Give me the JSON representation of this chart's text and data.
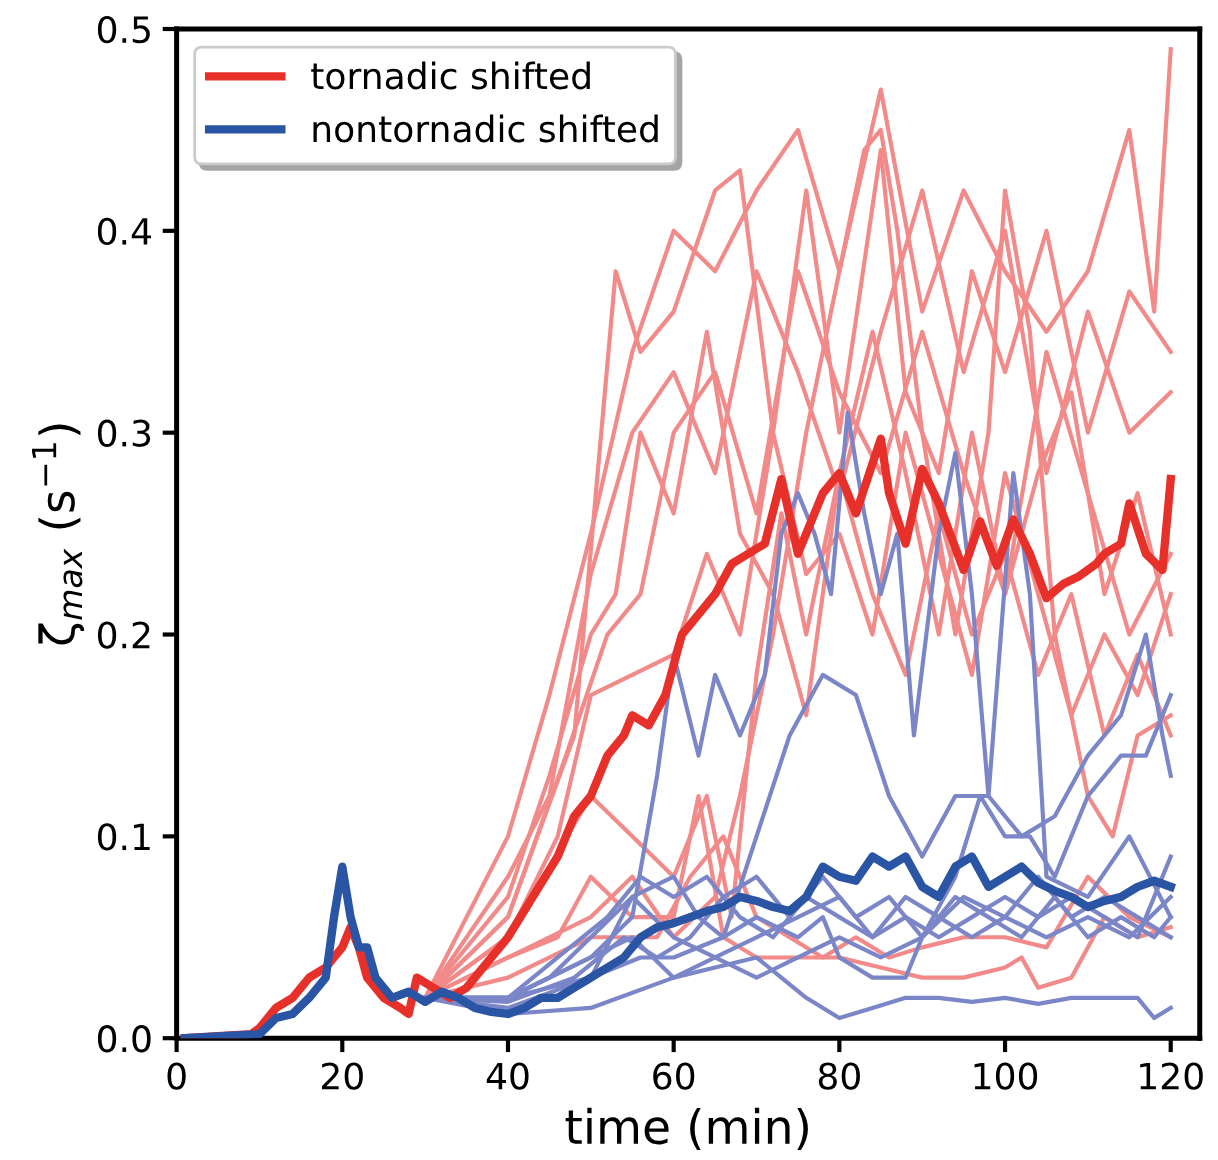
{
  "chart_data": {
    "type": "line",
    "xlabel": "time (min)",
    "ylabel": "ζ$_{max}$ (s$^{−1}$)",
    "xlim": [
      0,
      123.5
    ],
    "ylim": [
      0,
      0.5
    ],
    "xticks": [
      0,
      20,
      40,
      60,
      80,
      100,
      120
    ],
    "yticks": [
      {
        "value": 0,
        "label": "0.0"
      },
      0.1,
      0.2,
      0.3,
      0.4,
      0.5
    ],
    "grid": false,
    "legend": "top left",
    "marker": "none",
    "line_style": "solid",
    "series": [
      {
        "color": "#f28a8a",
        "x": [
          30,
          40,
          45,
          50,
          55,
          60,
          65,
          70,
          75,
          80,
          85,
          90,
          95,
          100,
          105,
          110,
          115,
          118,
          120
        ],
        "values": [
          0.02,
          0.1,
          0.17,
          0.25,
          0.34,
          0.4,
          0.38,
          0.42,
          0.45,
          0.38,
          0.47,
          0.36,
          0.42,
          0.38,
          0.35,
          0.38,
          0.45,
          0.36,
          0.49
        ]
      },
      {
        "color": "#f28a8a",
        "x": [
          30,
          40,
          48,
          53,
          56,
          60,
          65,
          68,
          72,
          76,
          80,
          85,
          88,
          92,
          96,
          100,
          105,
          110,
          115,
          120
        ],
        "values": [
          0.02,
          0.06,
          0.15,
          0.38,
          0.34,
          0.36,
          0.42,
          0.43,
          0.3,
          0.42,
          0.3,
          0.44,
          0.32,
          0.28,
          0.38,
          0.33,
          0.4,
          0.3,
          0.37,
          0.34
        ]
      },
      {
        "color": "#f28a8a",
        "x": [
          30,
          40,
          45,
          50,
          55,
          60,
          65,
          70,
          75,
          80,
          85,
          90,
          95,
          100,
          105,
          110,
          115,
          120
        ],
        "values": [
          0.02,
          0.08,
          0.12,
          0.23,
          0.3,
          0.33,
          0.28,
          0.38,
          0.33,
          0.27,
          0.35,
          0.42,
          0.33,
          0.4,
          0.28,
          0.36,
          0.3,
          0.32
        ]
      },
      {
        "color": "#f28a8a",
        "x": [
          30,
          40,
          47,
          52,
          56,
          60,
          65,
          70,
          75,
          80,
          85,
          90,
          95,
          100,
          105,
          110,
          115,
          120
        ],
        "values": [
          0.02,
          0.06,
          0.14,
          0.2,
          0.22,
          0.3,
          0.33,
          0.26,
          0.38,
          0.32,
          0.28,
          0.35,
          0.28,
          0.22,
          0.34,
          0.27,
          0.2,
          0.24
        ]
      },
      {
        "color": "#f28a8a",
        "x": [
          30,
          40,
          46,
          50,
          55,
          60,
          64,
          68,
          72,
          76,
          80,
          84,
          88,
          92,
          96,
          100,
          104,
          108,
          112,
          116,
          120
        ],
        "values": [
          0.02,
          0.05,
          0.1,
          0.17,
          0.18,
          0.19,
          0.24,
          0.2,
          0.3,
          0.23,
          0.25,
          0.2,
          0.3,
          0.24,
          0.18,
          0.28,
          0.22,
          0.16,
          0.2,
          0.17,
          0.22
        ]
      },
      {
        "color": "#f28a8a",
        "x": [
          30,
          40,
          50,
          55,
          60,
          64,
          67,
          70,
          73,
          76,
          80,
          84,
          88,
          92,
          96,
          100,
          104,
          108,
          112,
          116,
          120
        ],
        "values": [
          0.02,
          0.05,
          0.12,
          0.1,
          0.08,
          0.12,
          0.06,
          0.18,
          0.26,
          0.2,
          0.28,
          0.22,
          0.18,
          0.26,
          0.2,
          0.24,
          0.18,
          0.22,
          0.15,
          0.19,
          0.15
        ]
      },
      {
        "color": "#f28a8a",
        "x": [
          30,
          40,
          46,
          50,
          55,
          60,
          63,
          66,
          70,
          75,
          80,
          85,
          90,
          95,
          100,
          102,
          104,
          108,
          112,
          116,
          120
        ],
        "values": [
          0.02,
          0.04,
          0.05,
          0.08,
          0.06,
          0.06,
          0.12,
          0.05,
          0.04,
          0.04,
          0.04,
          0.035,
          0.03,
          0.03,
          0.035,
          0.04,
          0.025,
          0.03,
          0.06,
          0.05,
          0.055
        ]
      },
      {
        "color": "#f28a8a",
        "x": [
          30,
          40,
          50,
          55,
          60,
          65,
          68,
          72,
          76,
          80,
          83,
          85,
          87,
          90,
          94,
          98,
          100,
          103,
          106,
          110,
          113,
          116,
          120
        ],
        "values": [
          0.02,
          0.04,
          0.06,
          0.08,
          0.05,
          0.07,
          0.12,
          0.2,
          0.3,
          0.38,
          0.44,
          0.45,
          0.4,
          0.3,
          0.2,
          0.3,
          0.42,
          0.35,
          0.2,
          0.12,
          0.1,
          0.15,
          0.16
        ]
      },
      {
        "color": "#f28a8a",
        "x": [
          30,
          40,
          50,
          58,
          62,
          66,
          70,
          74,
          78,
          82,
          86,
          90,
          95,
          100,
          105,
          110,
          115,
          120
        ],
        "values": [
          0.02,
          0.03,
          0.05,
          0.05,
          0.08,
          0.1,
          0.06,
          0.05,
          0.04,
          0.05,
          0.04,
          0.045,
          0.05,
          0.05,
          0.045,
          0.08,
          0.06,
          0.05
        ]
      },
      {
        "color": "#f28a8a",
        "x": [
          30,
          40,
          45,
          50,
          53,
          56,
          60,
          64,
          68,
          72,
          76,
          80,
          84,
          88,
          92,
          96,
          100,
          104,
          108,
          112,
          116,
          120
        ],
        "values": [
          0.02,
          0.07,
          0.13,
          0.2,
          0.22,
          0.3,
          0.26,
          0.35,
          0.25,
          0.22,
          0.16,
          0.28,
          0.35,
          0.28,
          0.2,
          0.3,
          0.22,
          0.28,
          0.32,
          0.22,
          0.27,
          0.2
        ]
      },
      {
        "color": "#7b86c8",
        "x": [
          30,
          40,
          50,
          55,
          58,
          60,
          63,
          65,
          68,
          71,
          73,
          75,
          77,
          79,
          81,
          83,
          85,
          87,
          89,
          92,
          94,
          96,
          98,
          101,
          103,
          105,
          110,
          115,
          120
        ],
        "values": [
          0.02,
          0.02,
          0.04,
          0.06,
          0.13,
          0.19,
          0.14,
          0.18,
          0.15,
          0.18,
          0.25,
          0.27,
          0.25,
          0.22,
          0.31,
          0.26,
          0.22,
          0.25,
          0.15,
          0.25,
          0.29,
          0.22,
          0.12,
          0.28,
          0.22,
          0.08,
          0.07,
          0.1,
          0.06
        ]
      },
      {
        "color": "#7b86c8",
        "x": [
          30,
          40,
          45,
          50,
          55,
          60,
          63,
          66,
          70,
          74,
          78,
          82,
          86,
          90,
          94,
          98,
          102,
          106,
          110,
          114,
          117,
          119,
          120
        ],
        "values": [
          0.02,
          0.02,
          0.03,
          0.05,
          0.07,
          0.08,
          0.06,
          0.05,
          0.1,
          0.15,
          0.18,
          0.17,
          0.12,
          0.09,
          0.12,
          0.12,
          0.1,
          0.11,
          0.14,
          0.16,
          0.2,
          0.15,
          0.13
        ]
      },
      {
        "color": "#7b86c8",
        "x": [
          30,
          40,
          50,
          56,
          60,
          66,
          70,
          75,
          78,
          80,
          84,
          88,
          90,
          94,
          97,
          100,
          103,
          106,
          110,
          114,
          117,
          120
        ],
        "values": [
          0.02,
          0.02,
          0.03,
          0.04,
          0.04,
          0.05,
          0.06,
          0.05,
          0.06,
          0.04,
          0.03,
          0.03,
          0.05,
          0.08,
          0.12,
          0.1,
          0.1,
          0.08,
          0.12,
          0.14,
          0.14,
          0.17
        ]
      },
      {
        "color": "#7b86c8",
        "x": [
          30,
          40,
          50,
          55,
          60,
          65,
          70,
          75,
          80,
          84,
          88,
          92,
          96,
          100,
          104,
          108,
          112,
          116,
          120
        ],
        "values": [
          0.02,
          0.015,
          0.03,
          0.07,
          0.05,
          0.04,
          0.05,
          0.06,
          0.07,
          0.05,
          0.06,
          0.05,
          0.06,
          0.07,
          0.06,
          0.07,
          0.06,
          0.05,
          0.09
        ]
      },
      {
        "color": "#7b86c8",
        "x": [
          30,
          40,
          50,
          60,
          65,
          70,
          73,
          76,
          80,
          84,
          88,
          92,
          96,
          100,
          104,
          108,
          112,
          116,
          118,
          120
        ],
        "values": [
          0.02,
          0.012,
          0.015,
          0.03,
          0.035,
          0.04,
          0.03,
          0.02,
          0.01,
          0.015,
          0.02,
          0.02,
          0.018,
          0.02,
          0.017,
          0.02,
          0.02,
          0.02,
          0.01,
          0.015
        ]
      },
      {
        "color": "#7b86c8",
        "x": [
          30,
          40,
          46,
          52,
          56,
          60,
          64,
          68,
          72,
          76,
          80,
          84,
          88,
          92,
          96,
          100,
          104,
          108,
          112,
          116,
          120
        ],
        "values": [
          0.02,
          0.02,
          0.04,
          0.06,
          0.08,
          0.07,
          0.08,
          0.06,
          0.05,
          0.07,
          0.06,
          0.05,
          0.07,
          0.06,
          0.05,
          0.06,
          0.08,
          0.06,
          0.07,
          0.06,
          0.05
        ]
      },
      {
        "color": "#7b86c8",
        "x": [
          30,
          40,
          48,
          54,
          58,
          62,
          66,
          70,
          74,
          78,
          82,
          86,
          90,
          94,
          98,
          102,
          106,
          110,
          114,
          118,
          120
        ],
        "values": [
          0.02,
          0.018,
          0.03,
          0.05,
          0.04,
          0.05,
          0.07,
          0.08,
          0.06,
          0.08,
          0.06,
          0.07,
          0.05,
          0.07,
          0.06,
          0.05,
          0.07,
          0.05,
          0.06,
          0.05,
          0.06
        ]
      },
      {
        "color": "#7b86c8",
        "x": [
          30,
          40,
          50,
          55,
          60,
          65,
          70,
          75,
          80,
          85,
          90,
          95,
          100,
          105,
          110,
          115,
          120
        ],
        "values": [
          0.02,
          0.02,
          0.04,
          0.05,
          0.03,
          0.04,
          0.03,
          0.04,
          0.05,
          0.04,
          0.05,
          0.07,
          0.06,
          0.05,
          0.06,
          0.05,
          0.07
        ]
      },
      {
        "name": "tornadic shifted",
        "color": "#e8302a",
        "x": [
          1,
          9,
          10,
          12,
          14,
          16,
          18,
          19,
          20,
          21,
          22,
          23,
          25,
          27,
          28,
          29,
          31,
          33,
          35,
          38,
          40,
          43,
          46,
          48,
          50,
          52,
          54,
          55,
          57,
          59,
          61,
          63,
          65,
          67,
          69,
          71,
          73,
          75,
          77,
          78,
          80,
          82,
          85,
          86,
          88,
          90,
          92,
          95,
          97,
          99,
          101,
          103,
          105,
          107,
          109,
          111,
          112,
          114,
          115,
          117,
          119,
          120
        ],
        "values": [
          0,
          0.002,
          0.005,
          0.015,
          0.02,
          0.03,
          0.035,
          0.04,
          0.045,
          0.055,
          0.045,
          0.03,
          0.02,
          0.015,
          0.012,
          0.03,
          0.025,
          0.02,
          0.025,
          0.04,
          0.05,
          0.07,
          0.09,
          0.11,
          0.12,
          0.14,
          0.15,
          0.16,
          0.155,
          0.17,
          0.2,
          0.21,
          0.22,
          0.235,
          0.24,
          0.245,
          0.277,
          0.24,
          0.26,
          0.27,
          0.28,
          0.26,
          0.297,
          0.27,
          0.245,
          0.282,
          0.265,
          0.232,
          0.256,
          0.234,
          0.257,
          0.24,
          0.218,
          0.225,
          0.229,
          0.235,
          0.24,
          0.245,
          0.265,
          0.24,
          0.232,
          0.277
        ]
      },
      {
        "name": "nontornadic shifted",
        "color": "#2a55a5",
        "x": [
          1,
          10,
          12,
          14,
          16,
          18,
          19,
          20,
          21,
          22,
          23,
          24,
          26,
          28,
          30,
          32,
          34,
          36,
          38,
          40,
          42,
          44,
          46,
          48,
          50,
          52,
          54,
          56,
          58,
          60,
          62,
          64,
          66,
          68,
          70,
          72,
          74,
          76,
          78,
          80,
          82,
          84,
          86,
          88,
          90,
          92,
          94,
          96,
          98,
          100,
          102,
          104,
          106,
          108,
          110,
          112,
          114,
          116,
          118,
          120
        ],
        "values": [
          0,
          0.002,
          0.01,
          0.012,
          0.02,
          0.03,
          0.06,
          0.085,
          0.06,
          0.045,
          0.045,
          0.03,
          0.02,
          0.023,
          0.018,
          0.023,
          0.02,
          0.015,
          0.013,
          0.012,
          0.015,
          0.02,
          0.02,
          0.025,
          0.03,
          0.035,
          0.04,
          0.05,
          0.055,
          0.057,
          0.06,
          0.063,
          0.065,
          0.07,
          0.068,
          0.065,
          0.063,
          0.07,
          0.085,
          0.08,
          0.078,
          0.09,
          0.085,
          0.09,
          0.075,
          0.07,
          0.085,
          0.09,
          0.075,
          0.08,
          0.085,
          0.077,
          0.073,
          0.07,
          0.065,
          0.068,
          0.07,
          0.075,
          0.078,
          0.075
        ]
      }
    ]
  }
}
